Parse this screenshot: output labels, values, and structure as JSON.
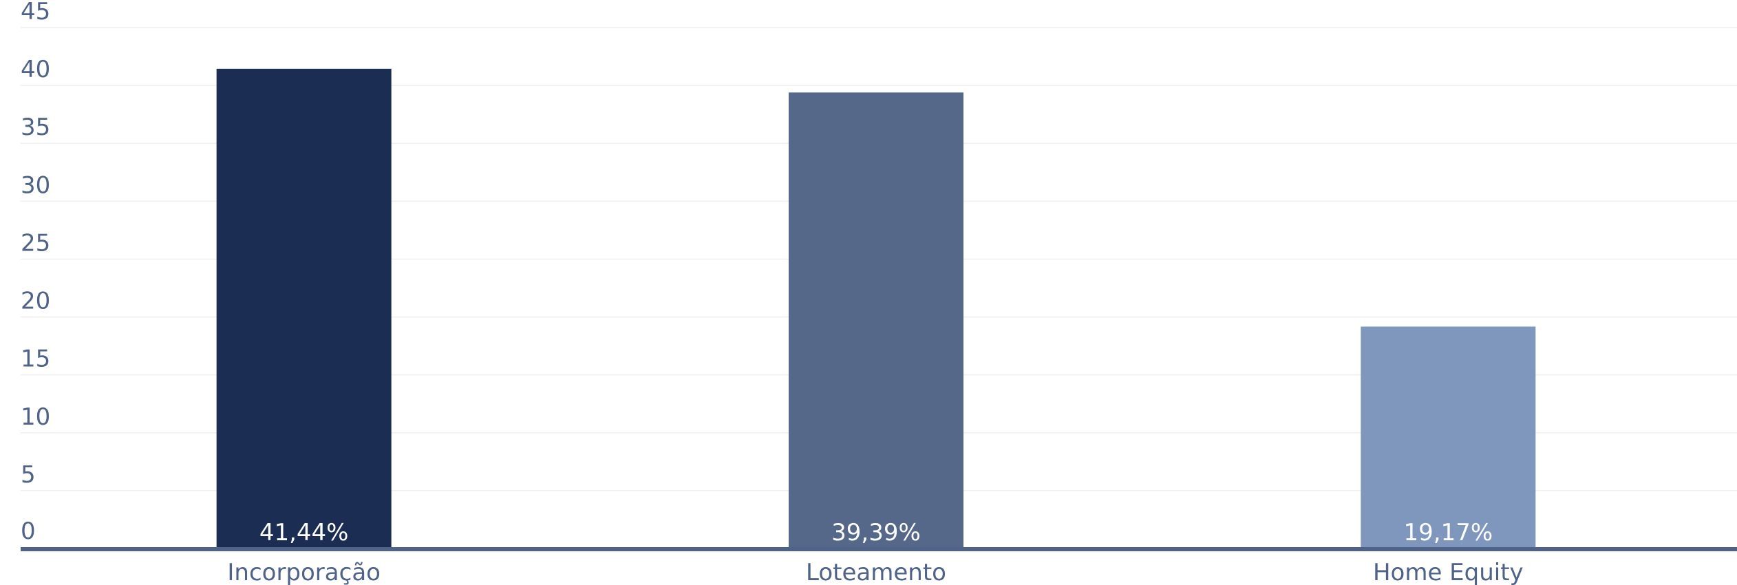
{
  "chart_data": {
    "type": "bar",
    "categories": [
      "Incorporação",
      "Loteamento",
      "Home Equity"
    ],
    "values": [
      41.44,
      39.39,
      19.17
    ],
    "value_labels": [
      "41,44%",
      "39,39%",
      "19,17%"
    ],
    "colors": [
      "#1b2d52",
      "#55688a",
      "#7f96bd"
    ],
    "title": "",
    "xlabel": "",
    "ylabel": "",
    "ylim": [
      0,
      45
    ],
    "yticks": [
      "0",
      "5",
      "10",
      "15",
      "20",
      "25",
      "30",
      "35",
      "40",
      "45"
    ],
    "grid": true,
    "legend": "none",
    "axis_color": "#4f6288",
    "grid_color": "#efefef"
  }
}
